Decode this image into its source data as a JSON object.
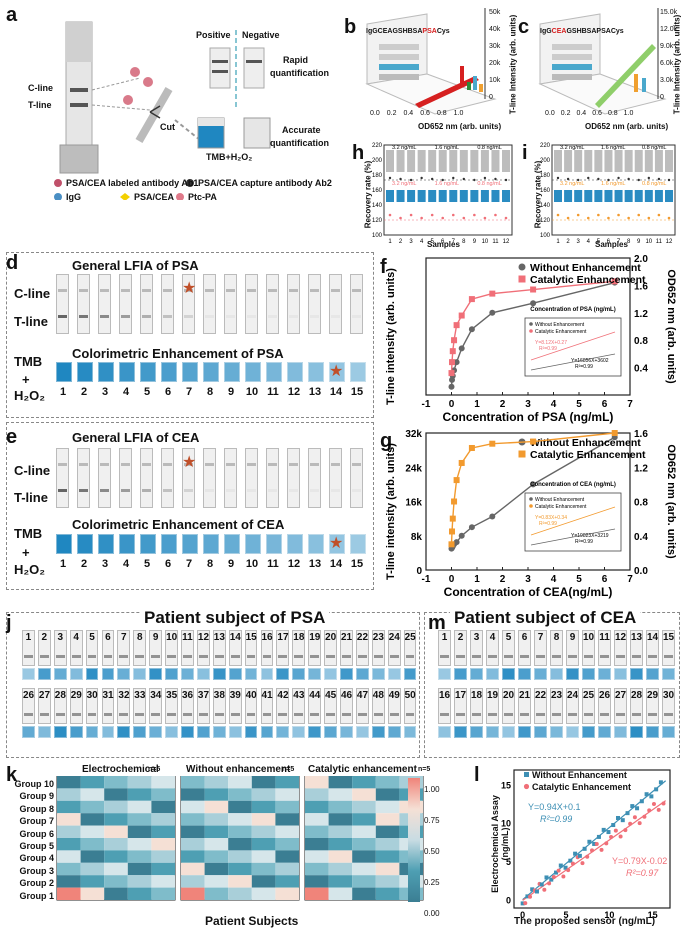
{
  "panels": {
    "a": {
      "label": "a",
      "c_line": "C-line",
      "t_line": "T-line",
      "positive": "Positive",
      "negative": "Negative",
      "rapid": "Rapid",
      "quantification1": "quantification",
      "accurate": "Accurate",
      "quantification2": "quantification",
      "cut": "Cut",
      "tmb_h2o2": "TMB+H₂O₂",
      "legend": [
        {
          "icon": "antibody-ab1-icon",
          "text": "PSA/CEA labeled antibody Ab1"
        },
        {
          "icon": "antibody-ab2-icon",
          "text": "PSA/CEA capture antibody Ab2"
        },
        {
          "icon": "igg-icon",
          "text": "IgG"
        },
        {
          "icon": "antigen-icon",
          "text": "PSA/CEA"
        },
        {
          "icon": "ptc-pa-icon",
          "text": "Ptc-PA"
        }
      ]
    },
    "b": {
      "label": "b",
      "categories": [
        "IgG",
        "CEA",
        "GSH",
        "BSA",
        "PSA",
        "Cys"
      ],
      "zlabel": "T-line Intensity (arb. units)",
      "xlabel": "OD652 nm (arb. units)",
      "zticks": [
        "0",
        "10k",
        "20k",
        "30k",
        "40k",
        "50k"
      ],
      "xticks": [
        "0.0",
        "0.2",
        "0.4",
        "0.6",
        "0.8",
        "1.0"
      ]
    },
    "c": {
      "label": "c",
      "categories": [
        "IgG",
        "CEA",
        "GSH",
        "BSA",
        "PSA",
        "Cys"
      ],
      "zlabel": "T-line Intensity (arb. units)",
      "xlabel": "OD652 nm (arb. units)",
      "zticks": [
        "0",
        "3.0k",
        "6.0k",
        "9.0k",
        "12.0k",
        "15.0k"
      ],
      "xticks": [
        "0.0",
        "0.2",
        "0.4",
        "0.6",
        "0.8",
        "1.0"
      ]
    },
    "h": {
      "label": "h",
      "ylabel": "Recovery rate (%)",
      "xlabel": "Samples",
      "conc": [
        "3.2 ng/mL",
        "1.6 ng/mL",
        "0.8 ng/mL"
      ],
      "yticks": [
        "100",
        "120",
        "140",
        "160",
        "180",
        "200",
        "220"
      ],
      "xticks": [
        "1",
        "2",
        "3",
        "4",
        "5",
        "6",
        "7",
        "8",
        "9",
        "10",
        "11",
        "12"
      ]
    },
    "i": {
      "label": "i",
      "ylabel": "Recovery rate (%)",
      "xlabel": "Samples",
      "conc": [
        "3.2 ng/mL",
        "1.6 ng/mL",
        "0.8 ng/mL"
      ],
      "yticks": [
        "100",
        "120",
        "140",
        "160",
        "180",
        "200",
        "220"
      ],
      "xticks": [
        "1",
        "2",
        "3",
        "4",
        "5",
        "6",
        "7",
        "8",
        "9",
        "10",
        "11",
        "12"
      ]
    },
    "d": {
      "label": "d",
      "title": "General LFIA of PSA",
      "c_line": "C-line",
      "t_line": "T-line",
      "sub": "Colorimetric Enhancement of PSA",
      "tmb": "TMB",
      "plus": "+",
      "h2o2": "H₂O₂",
      "lanes": [
        "1",
        "2",
        "3",
        "4",
        "5",
        "6",
        "7",
        "8",
        "9",
        "10",
        "11",
        "12",
        "13",
        "14",
        "15"
      ]
    },
    "e": {
      "label": "e",
      "title": "General LFIA of CEA",
      "c_line": "C-line",
      "t_line": "T-line",
      "sub": "Colorimetric Enhancement of CEA",
      "tmb": "TMB",
      "plus": "+",
      "h2o2": "H₂O₂",
      "lanes": [
        "1",
        "2",
        "3",
        "4",
        "5",
        "6",
        "7",
        "8",
        "9",
        "10",
        "11",
        "12",
        "13",
        "14",
        "15"
      ]
    },
    "j": {
      "label": "j",
      "title": "Patient subject of PSA",
      "count": 50
    },
    "m": {
      "label": "m",
      "title": "Patient subject of CEA",
      "count": 30
    },
    "k": {
      "label": "k",
      "titles": [
        "Electrochemical",
        "Without enhancement",
        "Catalytic enhancement"
      ],
      "n": "n=5",
      "groups": [
        "Group 10",
        "Group 9",
        "Group 8",
        "Group 7",
        "Group 6",
        "Group 5",
        "Group 4",
        "Group 3",
        "Group 2",
        "Group 1"
      ],
      "xlabel": "Patient Subjects",
      "colorbar": [
        "1.00",
        "0.75",
        "0.50",
        "0.25",
        "0.00"
      ]
    },
    "l": {
      "label": "l",
      "legend": [
        "Without Enhancement",
        "Catalytic Enhancement"
      ],
      "eq1": "Y=0.94X+0.1",
      "r1": "R²=0.99",
      "eq2": "Y=0.79X-0.02",
      "r2": "R²=0.97",
      "xlabel": "The proposed sensor (ng/mL)",
      "ylabel": "Electrochemical Assay (ng/mL)",
      "xticks": [
        "0",
        "5",
        "10",
        "15"
      ],
      "yticks": [
        "0",
        "5",
        "10",
        "15"
      ]
    }
  },
  "chart_data": [
    {
      "id": "f",
      "type": "scatter",
      "label": "f",
      "xlabel": "Concentration of PSA (ng/mL)",
      "ylabel": "T-line intensity (arb. units)",
      "y2label": "OD652 nm (arb. units)",
      "xlim": [
        -1,
        7
      ],
      "ylim": [
        0,
        50000
      ],
      "y2lim": [
        0,
        2.0
      ],
      "xticks": [
        "-1",
        "0",
        "1",
        "2",
        "3",
        "4",
        "5",
        "6",
        "7"
      ],
      "y2ticks": [
        "0.4",
        "0.8",
        "1.2",
        "1.6",
        "2.0"
      ],
      "series": [
        {
          "name": "Without  Enhancement",
          "color": "#666666",
          "x": [
            0,
            0.02,
            0.05,
            0.1,
            0.2,
            0.4,
            0.8,
            1.6,
            3.2,
            6.4
          ],
          "y": [
            3000,
            5500,
            7000,
            9000,
            12000,
            17000,
            24000,
            30000,
            33500,
            41000
          ]
        },
        {
          "name": "Catalytic Enhancement",
          "color": "#f06f78",
          "x": [
            0,
            0.02,
            0.05,
            0.1,
            0.2,
            0.4,
            0.8,
            1.6,
            3.2,
            6.4
          ],
          "y": [
            8000,
            12000,
            16000,
            20000,
            25500,
            29000,
            35000,
            37000,
            38500,
            41500
          ]
        }
      ],
      "inset": {
        "title": "Concentration of PSA (ng/mL)",
        "legend": [
          "Without Enhancement",
          "Catalytic Enhancement"
        ],
        "eq1": "Y=8.12X+0.27",
        "r1": "R²=0.99",
        "eq2": "Y=16856X+3602",
        "r2": "R²=0.99"
      }
    },
    {
      "id": "g",
      "type": "scatter",
      "label": "g",
      "xlabel": "Concentration of CEA(ng/mL)",
      "ylabel": "T-line intensity (arb. units)",
      "y2label": "OD652 nm (arb. units)",
      "xlim": [
        -1,
        7
      ],
      "ylim": [
        0,
        32000
      ],
      "y2lim": [
        0,
        1.6
      ],
      "xticks": [
        "-1",
        "0",
        "1",
        "2",
        "3",
        "4",
        "5",
        "6",
        "7"
      ],
      "yticks": [
        "0",
        "8k",
        "16k",
        "24k",
        "32k"
      ],
      "y2ticks": [
        "0.0",
        "0.4",
        "0.8",
        "1.2",
        "1.6"
      ],
      "series": [
        {
          "name": "Without  Enhancement",
          "color": "#666666",
          "x": [
            0,
            0.02,
            0.05,
            0.1,
            0.2,
            0.4,
            0.8,
            1.6,
            3.2,
            6.4
          ],
          "y": [
            5000,
            5200,
            5500,
            6000,
            6500,
            8000,
            10000,
            12500,
            20000,
            31000
          ]
        },
        {
          "name": "Catalytic Enhancement",
          "color": "#f29a2e",
          "x": [
            0,
            0.02,
            0.05,
            0.1,
            0.2,
            0.4,
            0.8,
            1.6,
            3.2,
            6.4
          ],
          "y": [
            6000,
            9000,
            12000,
            16000,
            21000,
            25000,
            28500,
            29500,
            30000,
            32000
          ]
        }
      ],
      "inset": {
        "title": "Concentration of CEA (ng/mL)",
        "legend": [
          "Without Enhancement",
          "Catalytic Enhancement"
        ],
        "eq1": "Y=0.83X+0.34",
        "r1": "R²=0.99",
        "eq2": "Y=19823X+3219",
        "r2": "R²=0.99"
      }
    }
  ]
}
